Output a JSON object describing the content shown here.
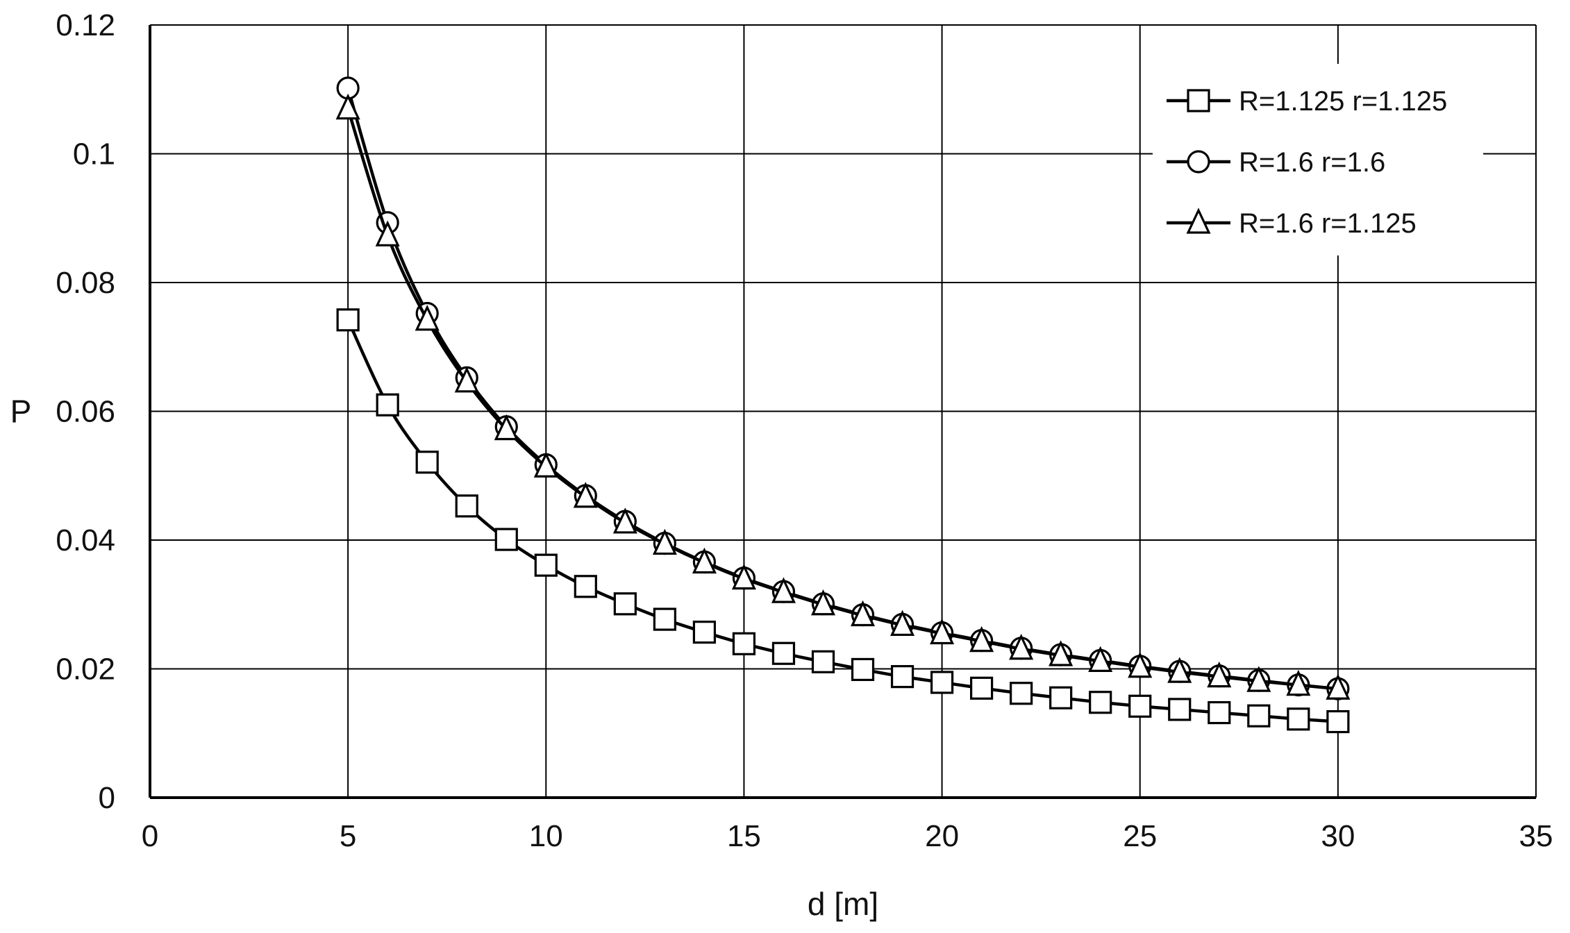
{
  "chart_data": {
    "type": "line",
    "title": "",
    "xlabel": "d [m]",
    "ylabel": "P",
    "xlim": [
      0,
      35
    ],
    "ylim": [
      0,
      0.12
    ],
    "x_ticks": [
      0,
      5,
      10,
      15,
      20,
      25,
      30,
      35
    ],
    "y_ticks": [
      0,
      0.02,
      0.04,
      0.06,
      0.08,
      0.1,
      0.12
    ],
    "x_tick_labels": [
      "0",
      "5",
      "10",
      "15",
      "20",
      "25",
      "30",
      "35"
    ],
    "y_tick_labels": [
      "0",
      "0.02",
      "0.04",
      "0.06",
      "0.08",
      "0.1",
      "0.12"
    ],
    "grid": true,
    "legend_position": "top-right",
    "x": [
      5,
      6,
      7,
      8,
      9,
      10,
      11,
      12,
      13,
      14,
      15,
      16,
      17,
      18,
      19,
      20,
      21,
      22,
      23,
      24,
      25,
      26,
      27,
      28,
      29,
      30
    ],
    "series": [
      {
        "name": "R=1.125 r=1.125",
        "marker": "square",
        "values": [
          0.0742,
          0.061,
          0.0521,
          0.0453,
          0.0401,
          0.0361,
          0.0328,
          0.0301,
          0.0277,
          0.0257,
          0.0239,
          0.0224,
          0.0211,
          0.0199,
          0.0188,
          0.0179,
          0.017,
          0.0162,
          0.0155,
          0.0148,
          0.0142,
          0.0137,
          0.0132,
          0.0127,
          0.0122,
          0.0118
        ]
      },
      {
        "name": "R=1.6 r=1.6",
        "marker": "circle",
        "values": [
          0.1102,
          0.0893,
          0.0752,
          0.0652,
          0.0576,
          0.0517,
          0.0469,
          0.0429,
          0.0395,
          0.0366,
          0.0341,
          0.032,
          0.0301,
          0.0284,
          0.0269,
          0.0256,
          0.0244,
          0.0232,
          0.0222,
          0.0213,
          0.0204,
          0.0196,
          0.0189,
          0.0182,
          0.0175,
          0.0169
        ]
      },
      {
        "name": "R=1.6 r=1.125",
        "marker": "triangle",
        "values": [
          0.107,
          0.0873,
          0.0742,
          0.0646,
          0.0572,
          0.0514,
          0.0467,
          0.0427,
          0.0394,
          0.0365,
          0.034,
          0.0319,
          0.03,
          0.0283,
          0.0268,
          0.0255,
          0.0243,
          0.0231,
          0.0221,
          0.0212,
          0.0203,
          0.0195,
          0.0188,
          0.0181,
          0.0175,
          0.0169
        ]
      }
    ]
  }
}
